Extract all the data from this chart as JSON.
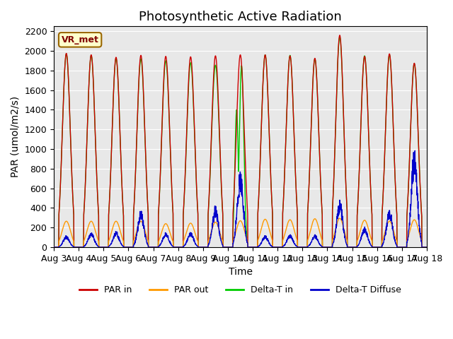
{
  "title": "Photosynthetic Active Radiation",
  "ylabel": "PAR (umol/m2/s)",
  "xlabel": "Time",
  "ylim": [
    0,
    2250
  ],
  "yticks": [
    0,
    200,
    400,
    600,
    800,
    1000,
    1200,
    1400,
    1600,
    1800,
    2000,
    2200
  ],
  "xtick_labels": [
    "Aug 3",
    "Aug 4",
    "Aug 5",
    "Aug 6",
    "Aug 7",
    "Aug 8",
    "Aug 9",
    "Aug 10",
    "Aug 11",
    "Aug 12",
    "Aug 13",
    "Aug 14",
    "Aug 15",
    "Aug 16",
    "Aug 17",
    "Aug 18"
  ],
  "station_label": "VR_met",
  "legend_labels": [
    "PAR in",
    "PAR out",
    "Delta-T in",
    "Delta-T Diffuse"
  ],
  "colors": {
    "par_in": "#cc0000",
    "par_out": "#ff9900",
    "delta_t_in": "#00cc00",
    "delta_t_diffuse": "#0000cc"
  },
  "bg_color": "#e8e8e8",
  "fig_bg": "#ffffff",
  "n_days": 15,
  "points_per_day": 144,
  "day_peaks_par_in": [
    1975,
    1960,
    1935,
    1955,
    1945,
    1940,
    1950,
    1960,
    1960,
    1950,
    1925,
    2160,
    1945,
    1970,
    1875
  ],
  "day_peaks_par_out": [
    265,
    265,
    265,
    265,
    240,
    245,
    255,
    270,
    285,
    280,
    290,
    295,
    275,
    265,
    280
  ],
  "day_peaks_delta_t_in": [
    1970,
    1955,
    1925,
    1920,
    1900,
    1880,
    1855,
    1890,
    1960,
    1955,
    1920,
    2140,
    1950,
    1960,
    1870
  ],
  "day_peaks_delta_t_diffuse": [
    120,
    155,
    165,
    380,
    155,
    155,
    430,
    780,
    120,
    130,
    130,
    490,
    210,
    400,
    1020
  ],
  "title_fontsize": 13,
  "label_fontsize": 10,
  "tick_fontsize": 9
}
